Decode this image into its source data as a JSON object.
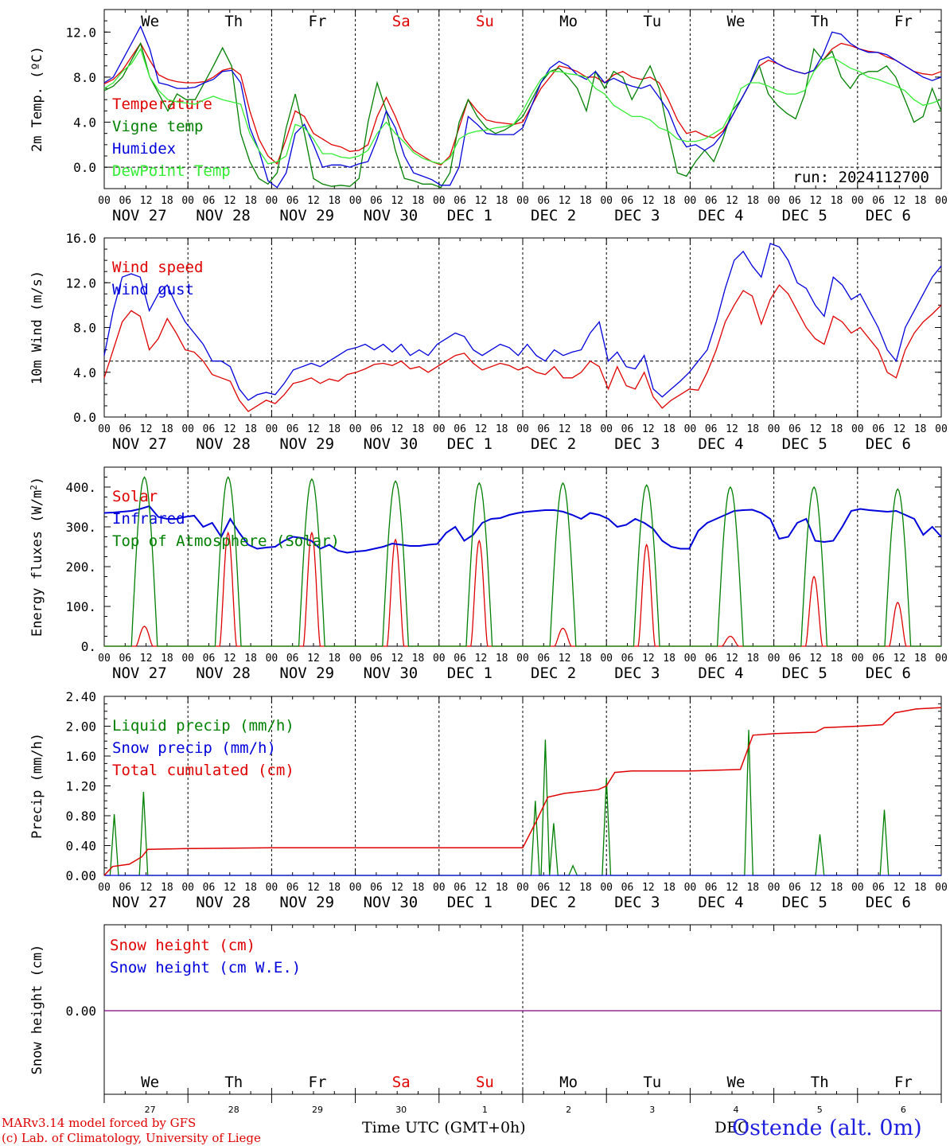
{
  "day_names": [
    "We",
    "Th",
    "Fr",
    "Sa",
    "Su",
    "Mo",
    "Tu",
    "We",
    "Th",
    "Fr"
  ],
  "day_name_colors": [
    "#000",
    "#000",
    "#000",
    "#e00000",
    "#e00000",
    "#000",
    "#000",
    "#000",
    "#000",
    "#000"
  ],
  "date_labels": [
    "NOV 27",
    "NOV 28",
    "NOV 29",
    "NOV 30",
    "DEC  1",
    "DEC  2",
    "DEC  3",
    "DEC  4",
    "DEC  5",
    "DEC  6"
  ],
  "hour_labels": [
    "00",
    "06",
    "12",
    "18"
  ],
  "hour_end_label": "00",
  "day_numbers": [
    "27",
    "28",
    "29",
    "30",
    "1",
    "2",
    "3",
    "4",
    "5",
    "6"
  ],
  "run_label": "run: 2024112700",
  "x_axis_title": "Time UTC (GMT+0h)",
  "footer_lines": [
    "MARv3.14 model forced by GFS",
    "(c) Lab. of Climatology, University of Liege"
  ],
  "station": "Ostende (alt. 0m)",
  "station_overlap_text": "DEC",
  "colors": {
    "red": "#e00000",
    "green": "#008000",
    "blue": "#0000dd",
    "lightgreen": "#33ee33",
    "purple": "#800080"
  },
  "chart_data": [
    {
      "type": "line",
      "ylabel": "2m Temp. (oC)",
      "ylim": [
        -1.9,
        14.0
      ],
      "yticks": [
        "0.0",
        "4.0",
        "8.0",
        "12.0"
      ],
      "ytick_values": [
        0,
        4,
        8,
        12
      ],
      "ref_line": 0,
      "series": [
        {
          "name": "Temperature",
          "color": "red",
          "values": [
            7.4,
            7.8,
            8.6,
            9.8,
            11.0,
            9.5,
            8.2,
            7.8,
            7.6,
            7.5,
            7.5,
            7.6,
            8.0,
            8.6,
            8.8,
            8.2,
            5.0,
            2.5,
            1.0,
            0.3,
            2.5,
            5.0,
            4.5,
            3.0,
            2.5,
            2.0,
            1.8,
            1.4,
            1.5,
            2.0,
            4.5,
            6.2,
            4.5,
            2.5,
            1.5,
            1.0,
            0.5,
            0.2,
            1.0,
            3.5,
            6.0,
            5.0,
            4.2,
            4.0,
            3.9,
            3.8,
            4.0,
            5.5,
            7.0,
            8.0,
            9.0,
            8.8,
            8.5,
            8.0,
            8.0,
            7.5,
            8.2,
            8.5,
            8.0,
            7.8,
            8.0,
            7.5,
            6.0,
            4.2,
            3.0,
            3.2,
            2.8,
            2.6,
            3.2,
            4.5,
            6.0,
            7.5,
            9.0,
            9.5,
            9.2,
            8.8,
            8.5,
            8.3,
            8.6,
            9.5,
            10.5,
            11.0,
            10.8,
            10.5,
            10.3,
            10.2,
            9.8,
            9.5,
            9.0,
            8.5,
            8.3,
            8.2,
            8.5
          ]
        },
        {
          "name": "Vigne temp",
          "color": "green",
          "values": [
            6.8,
            7.2,
            8.0,
            9.5,
            11.0,
            8.0,
            6.5,
            5.0,
            6.5,
            6.0,
            6.0,
            7.5,
            9.0,
            10.6,
            9.0,
            3.0,
            0.5,
            -1.0,
            -1.5,
            -0.5,
            3.5,
            6.5,
            3.0,
            -1.0,
            -1.5,
            -1.7,
            -1.6,
            -1.7,
            -1.0,
            4.0,
            7.5,
            5.0,
            1.5,
            -1.0,
            -1.2,
            -1.5,
            -1.5,
            -1.8,
            -0.5,
            4.0,
            6.0,
            4.5,
            3.5,
            3.0,
            3.3,
            3.8,
            4.5,
            6.0,
            7.5,
            8.5,
            8.8,
            8.0,
            7.0,
            5.0,
            8.5,
            7.0,
            8.5,
            8.0,
            6.0,
            7.5,
            9.0,
            7.0,
            3.0,
            -0.5,
            -0.8,
            0.5,
            1.5,
            0.5,
            2.5,
            5.0,
            6.0,
            7.5,
            9.0,
            6.5,
            5.5,
            4.8,
            4.3,
            6.5,
            10.5,
            9.5,
            10.3,
            8.0,
            7.0,
            8.2,
            8.5,
            8.5,
            9.0,
            8.0,
            6.0,
            4.0,
            4.5,
            7.0,
            5.0
          ]
        },
        {
          "name": "Humidex",
          "color": "blue",
          "values": [
            7.5,
            8.0,
            9.5,
            11.0,
            12.5,
            10.5,
            7.5,
            7.3,
            7.0,
            7.0,
            7.1,
            7.5,
            7.8,
            8.5,
            8.6,
            7.5,
            3.5,
            1.5,
            -1.2,
            -1.8,
            -0.5,
            3.0,
            3.8,
            2.0,
            0.0,
            0.2,
            0.2,
            0.0,
            0.3,
            0.5,
            2.5,
            5.0,
            3.5,
            1.0,
            -0.5,
            -0.8,
            -1.1,
            -1.6,
            -1.6,
            0.0,
            4.5,
            3.8,
            3.0,
            2.9,
            2.9,
            2.9,
            3.5,
            5.5,
            7.5,
            8.8,
            9.4,
            9.0,
            8.2,
            7.8,
            8.5,
            7.5,
            7.9,
            7.5,
            7.2,
            7.0,
            7.3,
            6.2,
            5.0,
            3.0,
            1.8,
            2.0,
            1.5,
            2.0,
            3.0,
            4.5,
            6.0,
            7.5,
            9.5,
            9.8,
            9.2,
            8.8,
            8.5,
            8.3,
            8.6,
            10.0,
            12.0,
            11.8,
            11.0,
            10.5,
            10.2,
            10.2,
            10.0,
            9.5,
            9.0,
            8.5,
            8.0,
            7.7,
            8.0
          ]
        },
        {
          "name": "DewPoint Temp",
          "color": "lightgreen",
          "values": [
            7.0,
            7.5,
            8.5,
            9.2,
            10.5,
            8.0,
            6.8,
            6.0,
            5.8,
            5.7,
            5.6,
            6.0,
            6.3,
            6.0,
            5.8,
            5.6,
            3.0,
            1.5,
            0.3,
            0.5,
            1.0,
            3.8,
            3.5,
            2.5,
            1.2,
            1.2,
            0.9,
            0.8,
            1.0,
            1.5,
            3.0,
            4.0,
            3.0,
            2.2,
            1.3,
            0.8,
            0.5,
            0.3,
            0.8,
            2.5,
            3.0,
            3.2,
            3.3,
            3.5,
            3.6,
            3.8,
            5.0,
            6.5,
            7.8,
            8.5,
            8.5,
            8.3,
            8.2,
            8.0,
            7.0,
            6.5,
            5.5,
            5.0,
            4.5,
            4.5,
            4.2,
            3.5,
            3.2,
            2.5,
            2.3,
            2.3,
            2.5,
            3.0,
            3.5,
            5.0,
            7.0,
            7.5,
            7.5,
            7.2,
            6.8,
            6.5,
            6.5,
            6.8,
            8.5,
            9.5,
            9.8,
            9.3,
            8.8,
            8.5,
            8.0,
            7.8,
            7.5,
            7.2,
            6.8,
            6.0,
            5.5,
            5.7,
            6.0
          ]
        }
      ]
    },
    {
      "type": "line",
      "ylabel": "10m Wind (m/s)",
      "ylim": [
        0,
        16.0
      ],
      "yticks": [
        "0.0",
        "4.0",
        "8.0",
        "12.0",
        "16.0"
      ],
      "ytick_values": [
        0,
        4,
        8,
        12,
        16
      ],
      "ref_line": 5,
      "series": [
        {
          "name": "Wind speed",
          "color": "red",
          "values": [
            3.5,
            6.0,
            8.5,
            9.5,
            9.0,
            6.0,
            7.0,
            8.8,
            7.5,
            6.0,
            5.8,
            5.0,
            3.8,
            3.5,
            3.2,
            1.5,
            0.5,
            1.0,
            1.5,
            1.2,
            2.0,
            3.0,
            3.2,
            3.5,
            3.0,
            3.4,
            3.2,
            3.8,
            4.0,
            4.3,
            4.7,
            4.8,
            4.6,
            5.0,
            4.3,
            4.5,
            4.0,
            4.5,
            5.0,
            5.5,
            5.7,
            4.8,
            4.2,
            4.5,
            4.8,
            4.6,
            4.2,
            4.5,
            4.0,
            3.8,
            4.5,
            3.5,
            3.5,
            4.0,
            5.0,
            4.5,
            2.5,
            4.5,
            2.8,
            2.5,
            4.0,
            1.8,
            0.8,
            1.5,
            2.0,
            2.5,
            2.4,
            4.0,
            6.0,
            8.5,
            10.0,
            11.3,
            10.8,
            8.3,
            10.5,
            11.8,
            11.0,
            9.5,
            8.0,
            7.0,
            6.5,
            9.0,
            8.5,
            7.5,
            8.0,
            7.0,
            6.0,
            4.0,
            3.5,
            6.0,
            7.5,
            8.5,
            9.2,
            10.0
          ]
        },
        {
          "name": "Wind gust",
          "color": "blue",
          "values": [
            5.5,
            9.5,
            12.5,
            12.8,
            12.5,
            9.5,
            11.0,
            11.8,
            10.0,
            8.5,
            7.5,
            6.5,
            5.0,
            5.0,
            4.5,
            2.5,
            1.5,
            2.0,
            2.2,
            2.0,
            3.0,
            4.2,
            4.5,
            4.8,
            4.5,
            5.0,
            5.5,
            6.0,
            6.2,
            6.5,
            6.0,
            6.5,
            5.8,
            6.5,
            5.5,
            6.0,
            5.5,
            6.5,
            7.0,
            7.5,
            7.2,
            6.0,
            5.5,
            6.0,
            6.5,
            6.2,
            5.5,
            6.5,
            5.5,
            5.0,
            6.0,
            5.5,
            5.8,
            6.0,
            7.5,
            8.5,
            5.0,
            5.8,
            4.5,
            4.3,
            5.5,
            2.5,
            1.8,
            2.5,
            3.2,
            4.0,
            5.0,
            6.0,
            8.5,
            11.5,
            14.0,
            14.8,
            13.5,
            12.5,
            15.5,
            15.2,
            14.0,
            12.0,
            11.5,
            10.0,
            9.0,
            12.5,
            11.8,
            10.5,
            11.0,
            9.5,
            8.0,
            6.0,
            5.0,
            8.0,
            9.5,
            11.0,
            12.5,
            13.5
          ]
        }
      ]
    },
    {
      "type": "line",
      "ylabel": "Energy fluxes (W/m2)",
      "ylim": [
        0,
        450
      ],
      "yticks": [
        "0.",
        "100.",
        "200.",
        "300.",
        "400."
      ],
      "ytick_values": [
        0,
        100,
        200,
        300,
        400
      ],
      "series": [
        {
          "name": "Solar",
          "color": "red",
          "peaks": [
            50,
            285,
            285,
            268,
            265,
            45,
            255,
            25,
            175,
            110
          ]
        },
        {
          "name": "Infrared",
          "color": "blue",
          "values": [
            335,
            336,
            338,
            340,
            345,
            352,
            325,
            320,
            320,
            325,
            328,
            300,
            310,
            275,
            320,
            285,
            255,
            245,
            248,
            250,
            265,
            275,
            272,
            265,
            245,
            255,
            240,
            235,
            238,
            240,
            245,
            250,
            258,
            255,
            252,
            252,
            255,
            257,
            285,
            300,
            265,
            280,
            310,
            320,
            322,
            330,
            335,
            338,
            340,
            342,
            342,
            338,
            330,
            320,
            335,
            330,
            320,
            300,
            305,
            320,
            310,
            295,
            265,
            250,
            245,
            245,
            290,
            310,
            320,
            330,
            340,
            342,
            343,
            335,
            320,
            270,
            275,
            310,
            320,
            265,
            262,
            265,
            300,
            340,
            345,
            342,
            340,
            338,
            340,
            330,
            320,
            280,
            300,
            275
          ]
        },
        {
          "name": "Top of Atmosphere (Solar)",
          "color": "green",
          "peaks": [
            425,
            425,
            420,
            415,
            410,
            410,
            405,
            400,
            400,
            395
          ]
        }
      ]
    },
    {
      "type": "line",
      "ylabel": "Precip (mm/h)",
      "ylim": [
        0,
        2.4
      ],
      "yticks": [
        "0.00",
        "0.40",
        "0.80",
        "1.20",
        "1.60",
        "2.00",
        "2.40"
      ],
      "ytick_values": [
        0,
        0.4,
        0.8,
        1.2,
        1.6,
        2.0,
        2.4
      ],
      "series": [
        {
          "name": "Liquid precip (mm/h)",
          "color": "green",
          "spikes": [
            [
              0.12,
              0.82
            ],
            [
              0.47,
              1.12
            ],
            [
              5.15,
              1.0
            ],
            [
              5.27,
              1.82
            ],
            [
              5.37,
              0.7
            ],
            [
              5.6,
              0.13
            ],
            [
              6.0,
              1.3
            ],
            [
              7.7,
              1.95
            ],
            [
              8.55,
              0.55
            ],
            [
              9.32,
              0.88
            ]
          ]
        },
        {
          "name": "Snow precip (mm/h)",
          "color": "blue",
          "values": [
            0,
            0
          ]
        },
        {
          "name": "Total cumulated (cm)",
          "color": "red",
          "values": [
            [
              0,
              0.0
            ],
            [
              0.1,
              0.12
            ],
            [
              0.3,
              0.15
            ],
            [
              0.45,
              0.25
            ],
            [
              0.52,
              0.35
            ],
            [
              1.0,
              0.36
            ],
            [
              2.0,
              0.37
            ],
            [
              3.0,
              0.37
            ],
            [
              4.0,
              0.37
            ],
            [
              5.0,
              0.37
            ],
            [
              5.15,
              0.7
            ],
            [
              5.3,
              1.05
            ],
            [
              5.5,
              1.1
            ],
            [
              5.9,
              1.15
            ],
            [
              6.0,
              1.2
            ],
            [
              6.1,
              1.38
            ],
            [
              6.3,
              1.4
            ],
            [
              7.0,
              1.4
            ],
            [
              7.6,
              1.42
            ],
            [
              7.75,
              1.88
            ],
            [
              8.0,
              1.9
            ],
            [
              8.5,
              1.92
            ],
            [
              8.6,
              1.98
            ],
            [
              9.0,
              2.0
            ],
            [
              9.3,
              2.02
            ],
            [
              9.45,
              2.18
            ],
            [
              9.7,
              2.23
            ],
            [
              10.0,
              2.25
            ]
          ]
        }
      ]
    },
    {
      "type": "line",
      "ylabel": "Snow height (cm)",
      "yticks": [
        "0.00"
      ],
      "ytick_values": [
        0
      ],
      "series": [
        {
          "name": "Snow height (cm)",
          "color": "red",
          "values": [
            0,
            0
          ]
        },
        {
          "name": "Snow height (cm W.E.)",
          "color": "blue",
          "values": [
            0,
            0
          ]
        }
      ]
    }
  ]
}
